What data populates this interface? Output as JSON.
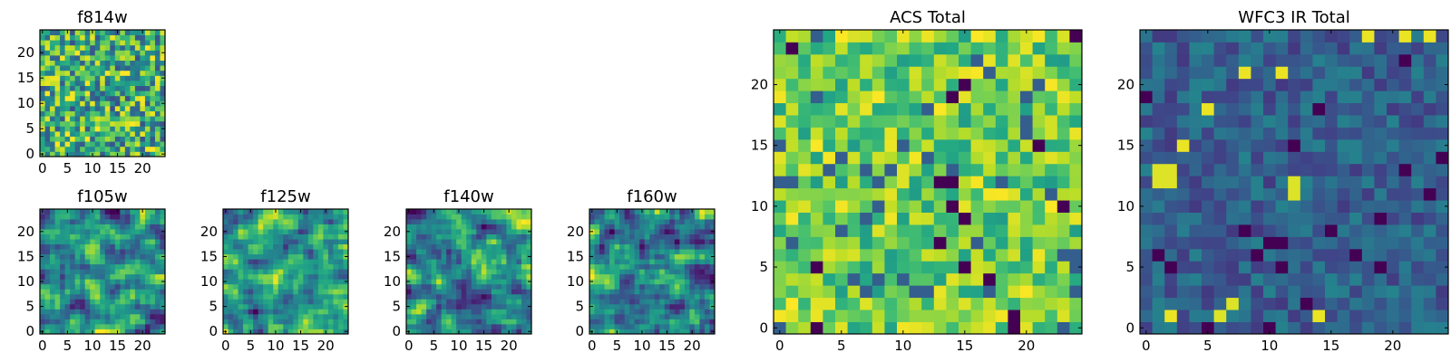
{
  "chart_data": [
    {
      "type": "heatmap",
      "title": "f814w",
      "size": [
        25,
        25
      ],
      "xlim": [
        -0.5,
        24.5
      ],
      "ylim": [
        -0.5,
        24.5
      ],
      "xticks": [
        0,
        5,
        10,
        15,
        20
      ],
      "yticks": [
        0,
        5,
        10,
        15,
        20
      ],
      "colormap": "viridis",
      "values": "pixel noise, 25x25 grid, mostly mid-to-high values"
    },
    {
      "type": "heatmap",
      "title": "f105w",
      "size": [
        25,
        25
      ],
      "xlim": [
        -0.5,
        24.5
      ],
      "ylim": [
        -0.5,
        24.5
      ],
      "xticks": [
        0,
        5,
        10,
        15,
        20
      ],
      "yticks": [
        0,
        5,
        10,
        15,
        20
      ],
      "colormap": "viridis",
      "values": "smoothed noise, 25x25 grid"
    },
    {
      "type": "heatmap",
      "title": "f125w",
      "size": [
        25,
        25
      ],
      "xlim": [
        -0.5,
        24.5
      ],
      "ylim": [
        -0.5,
        24.5
      ],
      "xticks": [
        0,
        5,
        10,
        15,
        20
      ],
      "yticks": [
        0,
        5,
        10,
        15,
        20
      ],
      "colormap": "viridis",
      "values": "smoothed noise, 25x25 grid"
    },
    {
      "type": "heatmap",
      "title": "f140w",
      "size": [
        25,
        25
      ],
      "xlim": [
        -0.5,
        24.5
      ],
      "ylim": [
        -0.5,
        24.5
      ],
      "xticks": [
        0,
        5,
        10,
        15,
        20
      ],
      "yticks": [
        0,
        5,
        10,
        15,
        20
      ],
      "colormap": "viridis",
      "values": "smoothed noise, 25x25 grid"
    },
    {
      "type": "heatmap",
      "title": "f160w",
      "size": [
        25,
        25
      ],
      "xlim": [
        -0.5,
        24.5
      ],
      "ylim": [
        -0.5,
        24.5
      ],
      "xticks": [
        0,
        5,
        10,
        15,
        20
      ],
      "yticks": [
        0,
        5,
        10,
        15,
        20
      ],
      "colormap": "viridis",
      "values": "smoothed noise, 25x25 grid"
    },
    {
      "type": "heatmap",
      "title": "ACS Total",
      "size": [
        25,
        25
      ],
      "xlim": [
        -0.5,
        24.5
      ],
      "ylim": [
        -0.5,
        24.5
      ],
      "xticks": [
        0,
        5,
        10,
        15,
        20
      ],
      "yticks": [
        0,
        5,
        10,
        15,
        20
      ],
      "colormap": "viridis",
      "values": "pixel noise, 25x25 grid, mostly green-yellow"
    },
    {
      "type": "heatmap",
      "title": "WFC3 IR Total",
      "size": [
        25,
        25
      ],
      "xlim": [
        -0.5,
        24.5
      ],
      "ylim": [
        -0.5,
        24.5
      ],
      "xticks": [
        0,
        5,
        10,
        15,
        20
      ],
      "yticks": [
        0,
        5,
        10,
        15,
        20
      ],
      "colormap": "viridis",
      "values": "pixel noise, 25x25 grid, mostly dark blue with bright spots"
    }
  ]
}
